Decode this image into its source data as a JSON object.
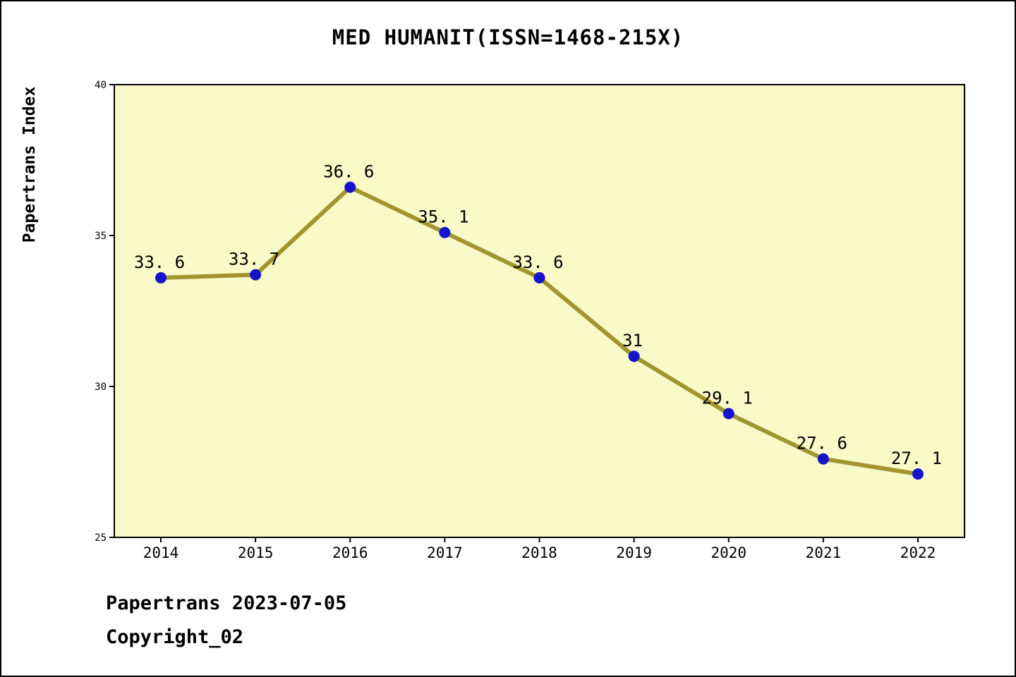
{
  "title": "MED HUMANIT(ISSN=1468-215X)",
  "footer": {
    "line1": "Papertrans 2023-07-05",
    "line2": "Copyright_02"
  },
  "chart_data": {
    "type": "line",
    "title": "MED HUMANIT(ISSN=1468-215X)",
    "ylabel": "Papertrans Index",
    "xlabel": "",
    "categories": [
      "2014",
      "2015",
      "2016",
      "2017",
      "2018",
      "2019",
      "2020",
      "2021",
      "2022"
    ],
    "series": [
      {
        "name": "Papertrans Index",
        "values": [
          33.6,
          33.7,
          36.6,
          35.1,
          33.6,
          31,
          29.1,
          27.6,
          27.1
        ],
        "point_labels": [
          "33. 6",
          "33. 7",
          "36. 6",
          "35. 1",
          "33. 6",
          "31",
          "29. 1",
          "27. 6",
          "27. 1"
        ]
      }
    ],
    "ylim": [
      25,
      40
    ],
    "yticks": [
      25,
      30,
      35,
      40
    ],
    "grid": false,
    "legend": "none",
    "colors": {
      "line": "#A2952F",
      "point": "#1414CC",
      "plot_bg": "#FAFAC8",
      "axis": "#000000",
      "text": "#000000"
    }
  }
}
